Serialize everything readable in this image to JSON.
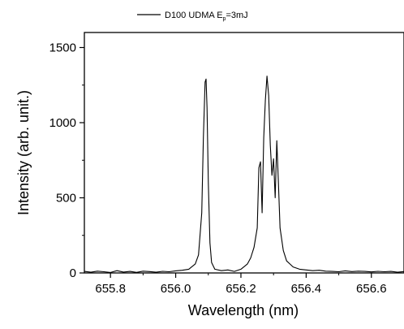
{
  "chart_data": {
    "type": "line",
    "xlabel": "Wavelength (nm)",
    "ylabel": "Intensity (arb. unit.)",
    "xlim": [
      655.72,
      656.7
    ],
    "ylim": [
      0,
      1600
    ],
    "xticks": [
      655.8,
      656.0,
      656.2,
      656.4,
      656.6
    ],
    "x_tick_labels": [
      "655.8",
      "656.0",
      "656.2",
      "656.4",
      "656.6"
    ],
    "yticks": [
      0,
      500,
      1000,
      1500
    ],
    "y_tick_labels": [
      "0",
      "500",
      "1000",
      "1500"
    ],
    "grid": false,
    "legend_position": "top-center, above plot",
    "legend": {
      "main": "D100 UDMA E",
      "subscript": "p",
      "suffix": "=3mJ"
    },
    "series": [
      {
        "name": "D100 UDMA Ep=3mJ",
        "color": "#000000",
        "x": [
          655.72,
          655.74,
          655.76,
          655.78,
          655.8,
          655.82,
          655.84,
          655.86,
          655.88,
          655.9,
          655.92,
          655.94,
          655.96,
          655.98,
          656.0,
          656.02,
          656.04,
          656.06,
          656.07,
          656.08,
          656.085,
          656.09,
          656.093,
          656.096,
          656.1,
          656.105,
          656.11,
          656.12,
          656.14,
          656.16,
          656.18,
          656.2,
          656.22,
          656.23,
          656.24,
          656.25,
          656.255,
          656.26,
          656.265,
          656.27,
          656.275,
          656.28,
          656.285,
          656.29,
          656.295,
          656.3,
          656.305,
          656.31,
          656.315,
          656.32,
          656.33,
          656.34,
          656.35,
          656.36,
          656.38,
          656.4,
          656.42,
          656.44,
          656.46,
          656.48,
          656.5,
          656.52,
          656.54,
          656.56,
          656.58,
          656.6,
          656.62,
          656.64,
          656.66,
          656.68,
          656.7
        ],
        "y": [
          10,
          5,
          12,
          8,
          3,
          15,
          6,
          10,
          4,
          12,
          9,
          5,
          11,
          8,
          14,
          18,
          25,
          60,
          120,
          400,
          900,
          1270,
          1290,
          1100,
          600,
          200,
          70,
          25,
          15,
          20,
          10,
          25,
          60,
          100,
          170,
          300,
          700,
          740,
          400,
          900,
          1150,
          1310,
          1180,
          850,
          650,
          760,
          500,
          880,
          600,
          300,
          150,
          80,
          60,
          40,
          25,
          20,
          15,
          18,
          12,
          10,
          8,
          14,
          9,
          12,
          10,
          7,
          11,
          8,
          10,
          5,
          9
        ]
      }
    ]
  }
}
